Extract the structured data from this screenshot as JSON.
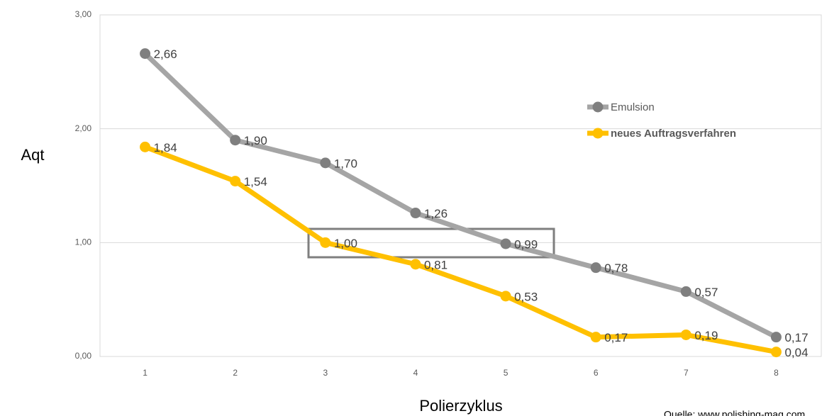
{
  "chart_data": {
    "type": "line",
    "y_label": "Aqt",
    "x_label": "Polierzyklus",
    "annotation": "Quelle: www.polishing-mag.com",
    "categories": [
      "1",
      "2",
      "3",
      "4",
      "5",
      "6",
      "7",
      "8"
    ],
    "series": [
      {
        "name": "Emulsion",
        "color": "#a5a5a5",
        "marker_color": "#7f7f7f",
        "values": [
          2.66,
          1.9,
          1.7,
          1.26,
          0.99,
          0.78,
          0.57,
          0.17
        ],
        "value_labels": [
          "2,66",
          "1,90",
          "1,70",
          "1,26",
          "0,99",
          "0,78",
          "0,57",
          "0,17"
        ]
      },
      {
        "name": "neues Auftragsverfahren",
        "color": "#ffc000",
        "marker_color": "#ffc000",
        "values": [
          1.84,
          1.54,
          1.0,
          0.81,
          0.53,
          0.17,
          0.19,
          0.04
        ],
        "value_labels": [
          "1,84",
          "1,54",
          "1,00",
          "0,81",
          "0,53",
          "0,17",
          "0,19",
          "0,04"
        ]
      }
    ],
    "ylim": [
      0,
      3
    ],
    "yticks": [
      {
        "value": 0,
        "label": "0,00"
      },
      {
        "value": 1,
        "label": "1,00"
      },
      {
        "value": 2,
        "label": "2,00"
      },
      {
        "value": 3,
        "label": "3,00"
      }
    ],
    "grid": true,
    "legend": "right"
  }
}
